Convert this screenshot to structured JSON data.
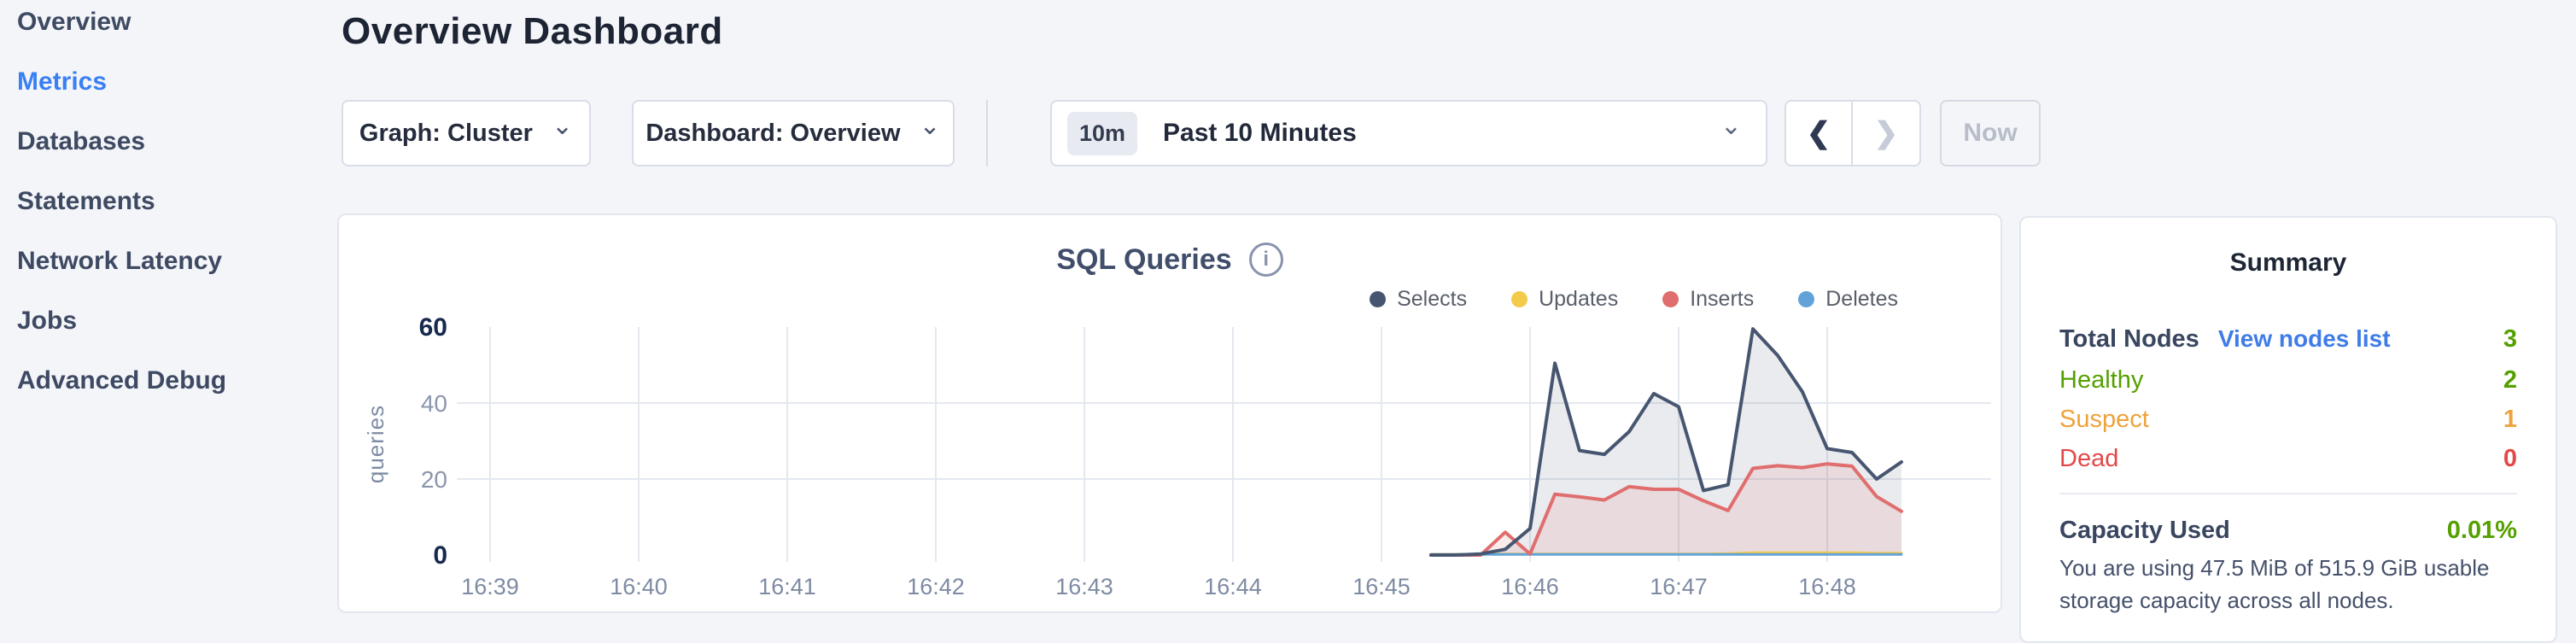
{
  "sidebar": {
    "items": [
      {
        "label": "Overview",
        "active": false
      },
      {
        "label": "Metrics",
        "active": true
      },
      {
        "label": "Databases",
        "active": false
      },
      {
        "label": "Statements",
        "active": false
      },
      {
        "label": "Network Latency",
        "active": false
      },
      {
        "label": "Jobs",
        "active": false
      },
      {
        "label": "Advanced Debug",
        "active": false
      }
    ],
    "active_color": "#3a80f2"
  },
  "header": {
    "title": "Overview Dashboard"
  },
  "controls": {
    "graph_dropdown": "Graph: Cluster",
    "dashboard_dropdown": "Dashboard: Overview",
    "time_badge": "10m",
    "time_label": "Past 10 Minutes",
    "now_label": "Now",
    "icons": {
      "chevron_down": "⌄",
      "prev_arrow": "❮",
      "next_arrow": "❯",
      "info": "i"
    }
  },
  "chart_data": {
    "type": "area",
    "title": "SQL Queries",
    "xlabel": "",
    "ylabel": "queries",
    "ylim": [
      0,
      60
    ],
    "y_ticks": [
      0,
      20,
      40,
      60
    ],
    "y_gridlines": [
      20,
      40
    ],
    "grid": true,
    "legend_position": "top-right",
    "x_tick_labels": [
      "16:39",
      "16:40",
      "16:41",
      "16:42",
      "16:43",
      "16:44",
      "16:45",
      "16:46",
      "16:47",
      "16:48"
    ],
    "x_tick_minutes": [
      0,
      1,
      2,
      3,
      4,
      5,
      6,
      7,
      8,
      9
    ],
    "sample_minutes": [
      6.333,
      6.5,
      6.667,
      6.833,
      7.0,
      7.167,
      7.333,
      7.5,
      7.667,
      7.833,
      8.0,
      8.167,
      8.333,
      8.5,
      8.667,
      8.833,
      9.0,
      9.167,
      9.333,
      9.5
    ],
    "series": [
      {
        "name": "Selects",
        "color": "#475670",
        "fill": "rgba(90,100,120,0.13)",
        "line_width": 4,
        "values": [
          0,
          0,
          0.3,
          1.5,
          7,
          50.5,
          27.5,
          26.5,
          32.5,
          42.5,
          39,
          17,
          18.5,
          59.5,
          52.5,
          43,
          28,
          27,
          20,
          24.5
        ]
      },
      {
        "name": "Updates",
        "color": "#f4ca4a",
        "fill": null,
        "line_width": 3,
        "values": [
          0.2,
          0.2,
          0.2,
          0.3,
          0.3,
          0.3,
          0.3,
          0.3,
          0.3,
          0.3,
          0.3,
          0.3,
          0.4,
          0.6,
          0.6,
          0.6,
          0.6,
          0.6,
          0.5,
          0.5
        ]
      },
      {
        "name": "Inserts",
        "color": "#e06e6e",
        "fill": "rgba(224,110,110,0.13)",
        "line_width": 4,
        "values": [
          0,
          0,
          0,
          6,
          0.3,
          16,
          15.3,
          14.5,
          18,
          17.3,
          17.3,
          14.3,
          11.7,
          22.8,
          23.5,
          23,
          24,
          23.4,
          15.4,
          11.5
        ]
      },
      {
        "name": "Deletes",
        "color": "#61a3d8",
        "fill": null,
        "line_width": 3,
        "values": [
          0.15,
          0.15,
          0.15,
          0.15,
          0.15,
          0.15,
          0.15,
          0.15,
          0.15,
          0.15,
          0.15,
          0.15,
          0.15,
          0.15,
          0.15,
          0.15,
          0.15,
          0.15,
          0.15,
          0.15
        ]
      }
    ],
    "axis_colors": {
      "tick_major": "#17294d",
      "tick_minor": "#8a96ab",
      "x_labels": "#7e8ba3",
      "gridline": "#e4e8ef"
    }
  },
  "summary": {
    "title": "Summary",
    "total_nodes_label": "Total Nodes",
    "view_nodes_link": "View nodes list",
    "total_nodes_value": "3",
    "node_rows": [
      {
        "label": "Healthy",
        "value": "2",
        "color": "#55a000"
      },
      {
        "label": "Suspect",
        "value": "1",
        "color": "#eea23c"
      },
      {
        "label": "Dead",
        "value": "0",
        "color": "#e34848"
      }
    ],
    "total_color": "#55a000",
    "capacity_label": "Capacity Used",
    "capacity_value": "0.01%",
    "capacity_color": "#55a000",
    "capacity_caption": "You are using 47.5 MiB of 515.9 GiB usable storage capacity across all nodes."
  }
}
